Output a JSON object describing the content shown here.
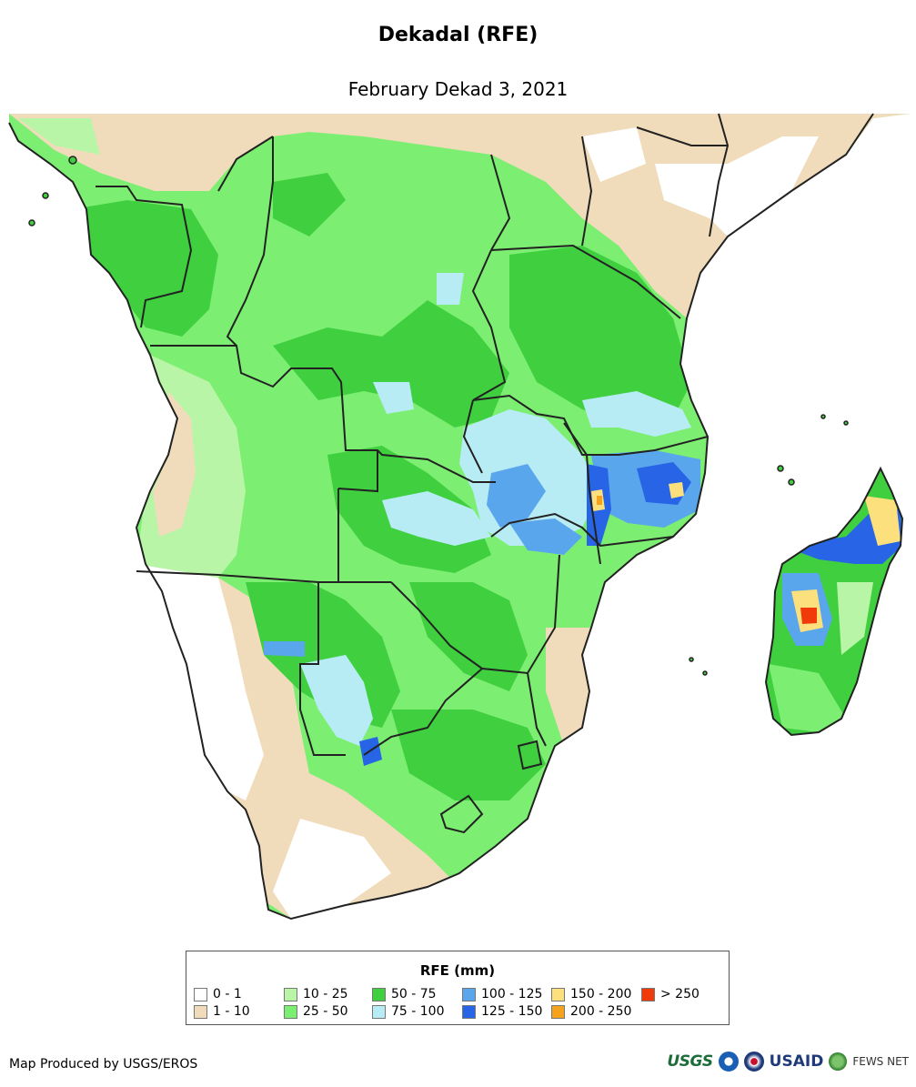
{
  "title": "Dekadal (RFE)",
  "subtitle": "February Dekad 3, 2021",
  "legend": {
    "title": "RFE (mm)",
    "items": [
      {
        "label": "0 - 1",
        "color": "#ffffff"
      },
      {
        "label": "1 - 10",
        "color": "#f0dcbb"
      },
      {
        "label": "10 - 25",
        "color": "#b9f5a6"
      },
      {
        "label": "25 - 50",
        "color": "#7cee72"
      },
      {
        "label": "50 - 75",
        "color": "#3fcf3f"
      },
      {
        "label": "75 - 100",
        "color": "#b8ecf5"
      },
      {
        "label": "100 - 125",
        "color": "#5aa6ec"
      },
      {
        "label": "125 - 150",
        "color": "#2764e6"
      },
      {
        "label": "150 - 200",
        "color": "#fce07d"
      },
      {
        "label": "200 - 250",
        "color": "#f5a31c"
      },
      {
        "label": "> 250",
        "color": "#f03a0a"
      }
    ]
  },
  "credit": "Map Produced by USGS/EROS",
  "logos": {
    "usgs": "USGS",
    "usaid": "USAID",
    "fews": "FEWS NET"
  }
}
